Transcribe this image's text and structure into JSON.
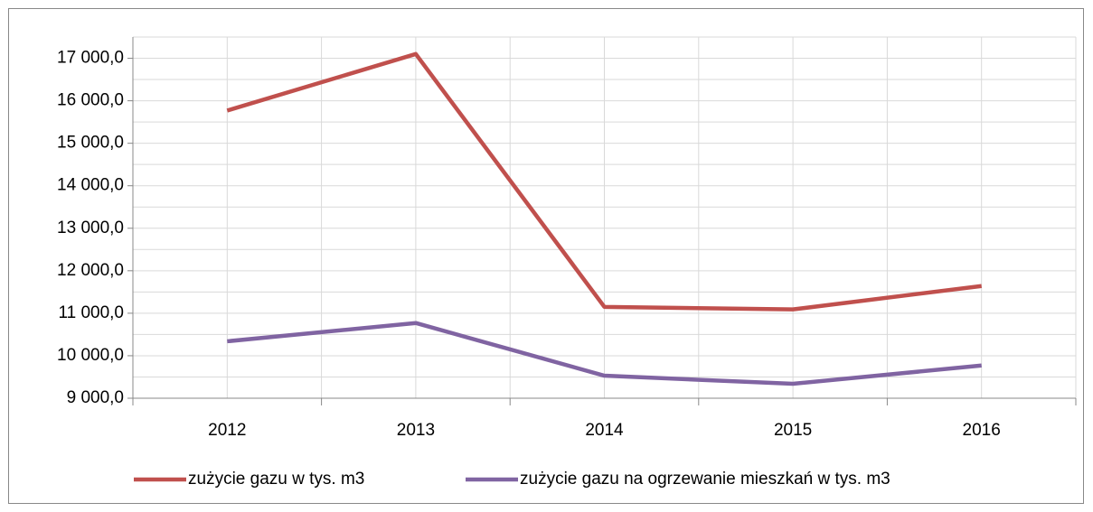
{
  "chart_data": {
    "type": "line",
    "categories": [
      "2012",
      "2013",
      "2014",
      "2015",
      "2016"
    ],
    "series": [
      {
        "name": "zużycie gazu w tys. m3",
        "color": "#c0504d",
        "values": [
          15770,
          17100,
          11150,
          11090,
          11640
        ]
      },
      {
        "name": "zużycie gazu na ogrzewanie mieszkań w tys. m3",
        "color": "#8064a2",
        "values": [
          10340,
          10770,
          9530,
          9340,
          9770
        ]
      }
    ],
    "ylim": [
      9000,
      17500
    ],
    "yticks": [
      {
        "value": 9000,
        "label": "9 000,0"
      },
      {
        "value": 10000,
        "label": "10 000,0"
      },
      {
        "value": 11000,
        "label": "11 000,0"
      },
      {
        "value": 12000,
        "label": "12 000,0"
      },
      {
        "value": 13000,
        "label": "13 000,0"
      },
      {
        "value": 14000,
        "label": "14 000,0"
      },
      {
        "value": 15000,
        "label": "15 000,0"
      },
      {
        "value": 16000,
        "label": "16 000,0"
      },
      {
        "value": 17000,
        "label": "17 000,0"
      }
    ],
    "grid": true,
    "legend": "bottom"
  }
}
